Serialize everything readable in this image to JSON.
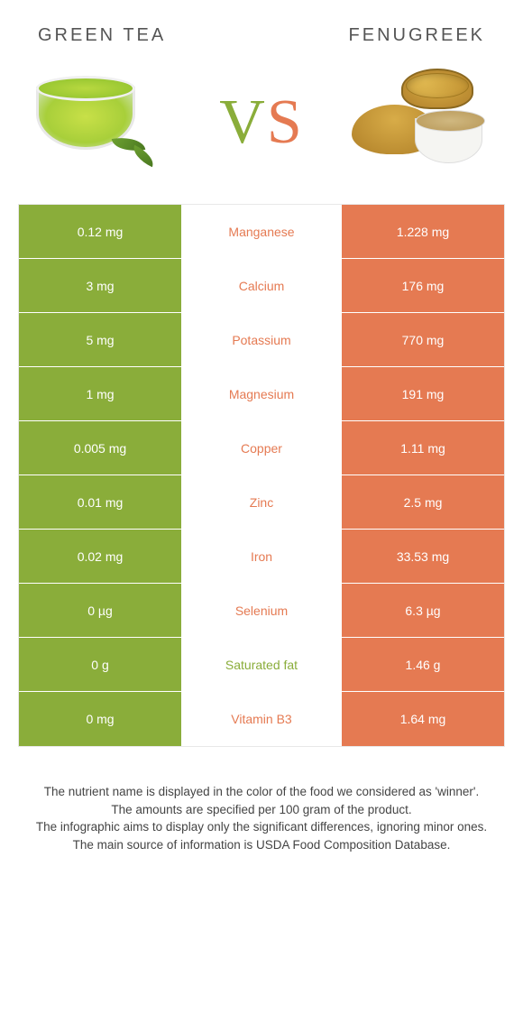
{
  "header": {
    "left": "Green tea",
    "right": "Fenugreek"
  },
  "vs": {
    "v": "V",
    "s": "S"
  },
  "colors": {
    "green": "#8aad3a",
    "orange": "#e57a52",
    "row_border": "#ffffff",
    "table_border": "#e8e8e8"
  },
  "table": {
    "rows": [
      {
        "label": "Manganese",
        "left": "0.12 mg",
        "right": "1.228 mg",
        "winner": "right"
      },
      {
        "label": "Calcium",
        "left": "3 mg",
        "right": "176 mg",
        "winner": "right"
      },
      {
        "label": "Potassium",
        "left": "5 mg",
        "right": "770 mg",
        "winner": "right"
      },
      {
        "label": "Magnesium",
        "left": "1 mg",
        "right": "191 mg",
        "winner": "right"
      },
      {
        "label": "Copper",
        "left": "0.005 mg",
        "right": "1.11 mg",
        "winner": "right"
      },
      {
        "label": "Zinc",
        "left": "0.01 mg",
        "right": "2.5 mg",
        "winner": "right"
      },
      {
        "label": "Iron",
        "left": "0.02 mg",
        "right": "33.53 mg",
        "winner": "right"
      },
      {
        "label": "Selenium",
        "left": "0 µg",
        "right": "6.3 µg",
        "winner": "right"
      },
      {
        "label": "Saturated fat",
        "left": "0 g",
        "right": "1.46 g",
        "winner": "left"
      },
      {
        "label": "Vitamin B3",
        "left": "0 mg",
        "right": "1.64 mg",
        "winner": "right"
      }
    ]
  },
  "footer": {
    "line1": "The nutrient name is displayed in the color of the food we considered as 'winner'.",
    "line2": "The amounts are specified per 100 gram of the product.",
    "line3": "The infographic aims to display only the significant differences, ignoring minor ones.",
    "line4": "The main source of information is USDA Food Composition Database."
  }
}
